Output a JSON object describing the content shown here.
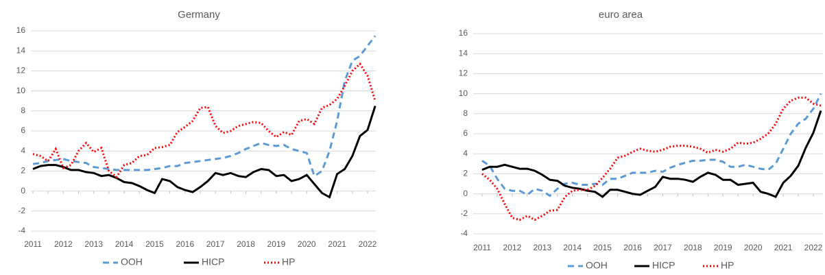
{
  "chart_data": [
    {
      "type": "line",
      "title": "Germany",
      "categories": [
        "2011",
        null,
        null,
        null,
        "2012",
        null,
        null,
        null,
        "2013",
        null,
        null,
        null,
        "2014",
        null,
        null,
        null,
        "2015",
        null,
        null,
        null,
        "2016",
        null,
        null,
        null,
        "2017",
        null,
        null,
        null,
        "2018",
        null,
        null,
        null,
        "2019",
        null,
        null,
        null,
        "2020",
        null,
        null,
        null,
        "2021",
        null,
        null,
        null,
        "2022",
        null
      ],
      "ylim": [
        -4,
        16
      ],
      "yticks": [
        -4,
        -2,
        0,
        2,
        4,
        6,
        8,
        10,
        12,
        14,
        16
      ],
      "grid": true,
      "series": [
        {
          "name": "OOH",
          "color": "#5b9bd5",
          "dash": "dashed",
          "values": [
            2.7,
            2.8,
            3.0,
            3.1,
            3.2,
            3.0,
            2.9,
            2.8,
            2.4,
            2.3,
            2.2,
            2.1,
            2.1,
            2.1,
            2.1,
            2.1,
            2.2,
            2.3,
            2.5,
            2.5,
            2.8,
            2.9,
            3.0,
            3.1,
            3.2,
            3.3,
            3.5,
            3.8,
            4.2,
            4.5,
            4.8,
            4.6,
            4.5,
            4.6,
            4.2,
            4.0,
            3.8,
            1.5,
            2.0,
            4.0,
            7.0,
            11.0,
            13.0,
            13.5,
            14.5,
            15.5
          ]
        },
        {
          "name": "HICP",
          "color": "#000000",
          "dash": "solid",
          "values": [
            2.2,
            2.5,
            2.6,
            2.6,
            2.4,
            2.1,
            2.1,
            1.9,
            1.8,
            1.5,
            1.6,
            1.3,
            0.9,
            0.8,
            0.5,
            0.1,
            -0.2,
            1.2,
            1.0,
            0.4,
            0.1,
            -0.1,
            0.4,
            1.0,
            1.8,
            1.6,
            1.8,
            1.5,
            1.4,
            1.9,
            2.2,
            2.1,
            1.5,
            1.6,
            1.0,
            1.2,
            1.6,
            0.7,
            -0.2,
            -0.6,
            1.7,
            2.2,
            3.5,
            5.5,
            6.1,
            8.5
          ]
        },
        {
          "name": "HP",
          "color": "#ff0000",
          "dash": "dotted",
          "values": [
            3.7,
            3.5,
            3.0,
            4.2,
            2.3,
            2.6,
            4.0,
            4.8,
            3.9,
            4.3,
            2.0,
            1.4,
            2.6,
            2.8,
            3.5,
            3.6,
            4.3,
            4.4,
            4.6,
            5.9,
            6.4,
            7.0,
            8.3,
            8.4,
            6.5,
            5.8,
            6.0,
            6.5,
            6.7,
            6.9,
            6.8,
            6.0,
            5.4,
            5.9,
            5.6,
            7.0,
            7.2,
            6.7,
            8.3,
            8.6,
            9.2,
            10.5,
            12.0,
            12.7,
            11.5,
            9.0
          ]
        }
      ]
    },
    {
      "type": "line",
      "title": "euro area",
      "categories": [
        "2011",
        null,
        null,
        null,
        "2012",
        null,
        null,
        null,
        "2013",
        null,
        null,
        null,
        "2014",
        null,
        null,
        null,
        "2015",
        null,
        null,
        null,
        "2016",
        null,
        null,
        null,
        "2017",
        null,
        null,
        null,
        "2018",
        null,
        null,
        null,
        "2019",
        null,
        null,
        null,
        "2020",
        null,
        null,
        null,
        "2021",
        null,
        null,
        null,
        "2022",
        null
      ],
      "ylim": [
        -4,
        16
      ],
      "yticks": [
        -4,
        -2,
        0,
        2,
        4,
        6,
        8,
        10,
        12,
        14,
        16
      ],
      "grid": true,
      "series": [
        {
          "name": "OOH",
          "color": "#5b9bd5",
          "dash": "dashed",
          "values": [
            3.3,
            2.8,
            1.5,
            0.5,
            0.3,
            0.3,
            -0.1,
            0.5,
            0.3,
            -0.2,
            0.5,
            1.0,
            1.1,
            0.9,
            0.9,
            1.0,
            0.9,
            1.5,
            1.5,
            1.8,
            2.1,
            2.1,
            2.1,
            2.3,
            2.2,
            2.6,
            2.9,
            3.1,
            3.3,
            3.3,
            3.4,
            3.4,
            3.2,
            2.7,
            2.7,
            2.9,
            2.7,
            2.5,
            2.4,
            3.0,
            4.5,
            6.0,
            7.0,
            7.5,
            8.5,
            10.0
          ]
        },
        {
          "name": "HICP",
          "color": "#000000",
          "dash": "solid",
          "values": [
            2.4,
            2.7,
            2.7,
            2.9,
            2.7,
            2.5,
            2.5,
            2.3,
            1.9,
            1.4,
            1.3,
            0.8,
            0.6,
            0.5,
            0.3,
            0.2,
            -0.3,
            0.4,
            0.4,
            0.2,
            0.0,
            -0.1,
            0.3,
            0.7,
            1.7,
            1.5,
            1.5,
            1.4,
            1.2,
            1.7,
            2.1,
            1.9,
            1.4,
            1.4,
            0.9,
            1.0,
            1.1,
            0.2,
            0.0,
            -0.3,
            1.1,
            1.8,
            2.8,
            4.6,
            6.1,
            8.3
          ]
        },
        {
          "name": "HP",
          "color": "#ff0000",
          "dash": "dotted",
          "values": [
            2.0,
            1.4,
            0.5,
            -1.0,
            -2.4,
            -2.6,
            -2.2,
            -2.6,
            -2.2,
            -1.7,
            -1.6,
            -0.3,
            0.3,
            0.4,
            0.4,
            0.8,
            1.6,
            2.5,
            3.6,
            3.8,
            4.2,
            4.5,
            4.3,
            4.2,
            4.4,
            4.7,
            4.8,
            4.8,
            4.7,
            4.5,
            4.1,
            4.4,
            4.2,
            4.5,
            5.1,
            5.0,
            5.1,
            5.5,
            6.0,
            7.0,
            8.5,
            9.3,
            9.6,
            9.6,
            9.0,
            8.8
          ]
        }
      ]
    }
  ]
}
